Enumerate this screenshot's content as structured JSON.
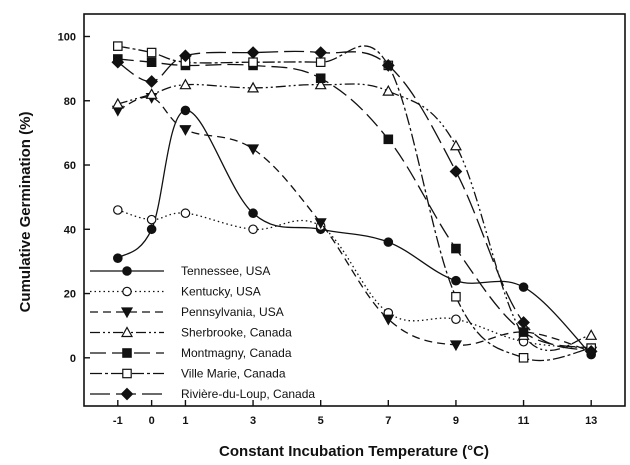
{
  "chart_data": {
    "type": "line",
    "xlabel": "Constant Incubation Temperature (°C)",
    "ylabel": "Cumulative Germination (%)",
    "x": [
      -1,
      0,
      1,
      3,
      5,
      7,
      9,
      11,
      13
    ],
    "x_tick_labels": [
      "-1",
      "0",
      "1",
      "3",
      "5",
      "7",
      "9",
      "11",
      "13"
    ],
    "xlim": [
      -2,
      14
    ],
    "ylim": [
      -15,
      107
    ],
    "y_ticks": [
      0,
      20,
      40,
      60,
      80,
      100
    ],
    "y_tick_labels": [
      "0",
      "20",
      "40",
      "60",
      "80",
      "100"
    ],
    "grid": false,
    "legend_position": "bottom-left",
    "series": [
      {
        "name": "Tennessee, USA",
        "marker": "filled-circle",
        "dash": "solid",
        "values": [
          31,
          40,
          77,
          45,
          40,
          36,
          24,
          22,
          1
        ]
      },
      {
        "name": "Kentucky, USA",
        "marker": "open-circle",
        "dash": "dotted",
        "values": [
          46,
          43,
          45,
          40,
          41,
          14,
          12,
          5,
          3
        ]
      },
      {
        "name": "Pennsylvania, USA",
        "marker": "filled-triangle-down",
        "dash": "dashed",
        "values": [
          77,
          81,
          71,
          65,
          42,
          12,
          4,
          8,
          2
        ]
      },
      {
        "name": "Sherbrooke, Canada",
        "marker": "open-triangle-up",
        "dash": "dash-dot-dot",
        "values": [
          79,
          82,
          85,
          84,
          85,
          83,
          66,
          7,
          7
        ]
      },
      {
        "name": "Montmagny, Canada",
        "marker": "filled-square",
        "dash": "long-dash",
        "values": [
          93,
          92,
          91,
          91,
          87,
          68,
          34,
          8,
          3
        ]
      },
      {
        "name": "Ville Marie, Canada",
        "marker": "open-square",
        "dash": "dash-dot",
        "values": [
          97,
          95,
          92,
          92,
          92,
          91,
          19,
          0,
          3
        ]
      },
      {
        "name": "Rivière-du-Loup, Canada",
        "marker": "filled-diamond",
        "dash": "long-dash-2",
        "values": [
          92,
          86,
          94,
          95,
          95,
          91,
          58,
          11,
          2
        ]
      }
    ]
  }
}
